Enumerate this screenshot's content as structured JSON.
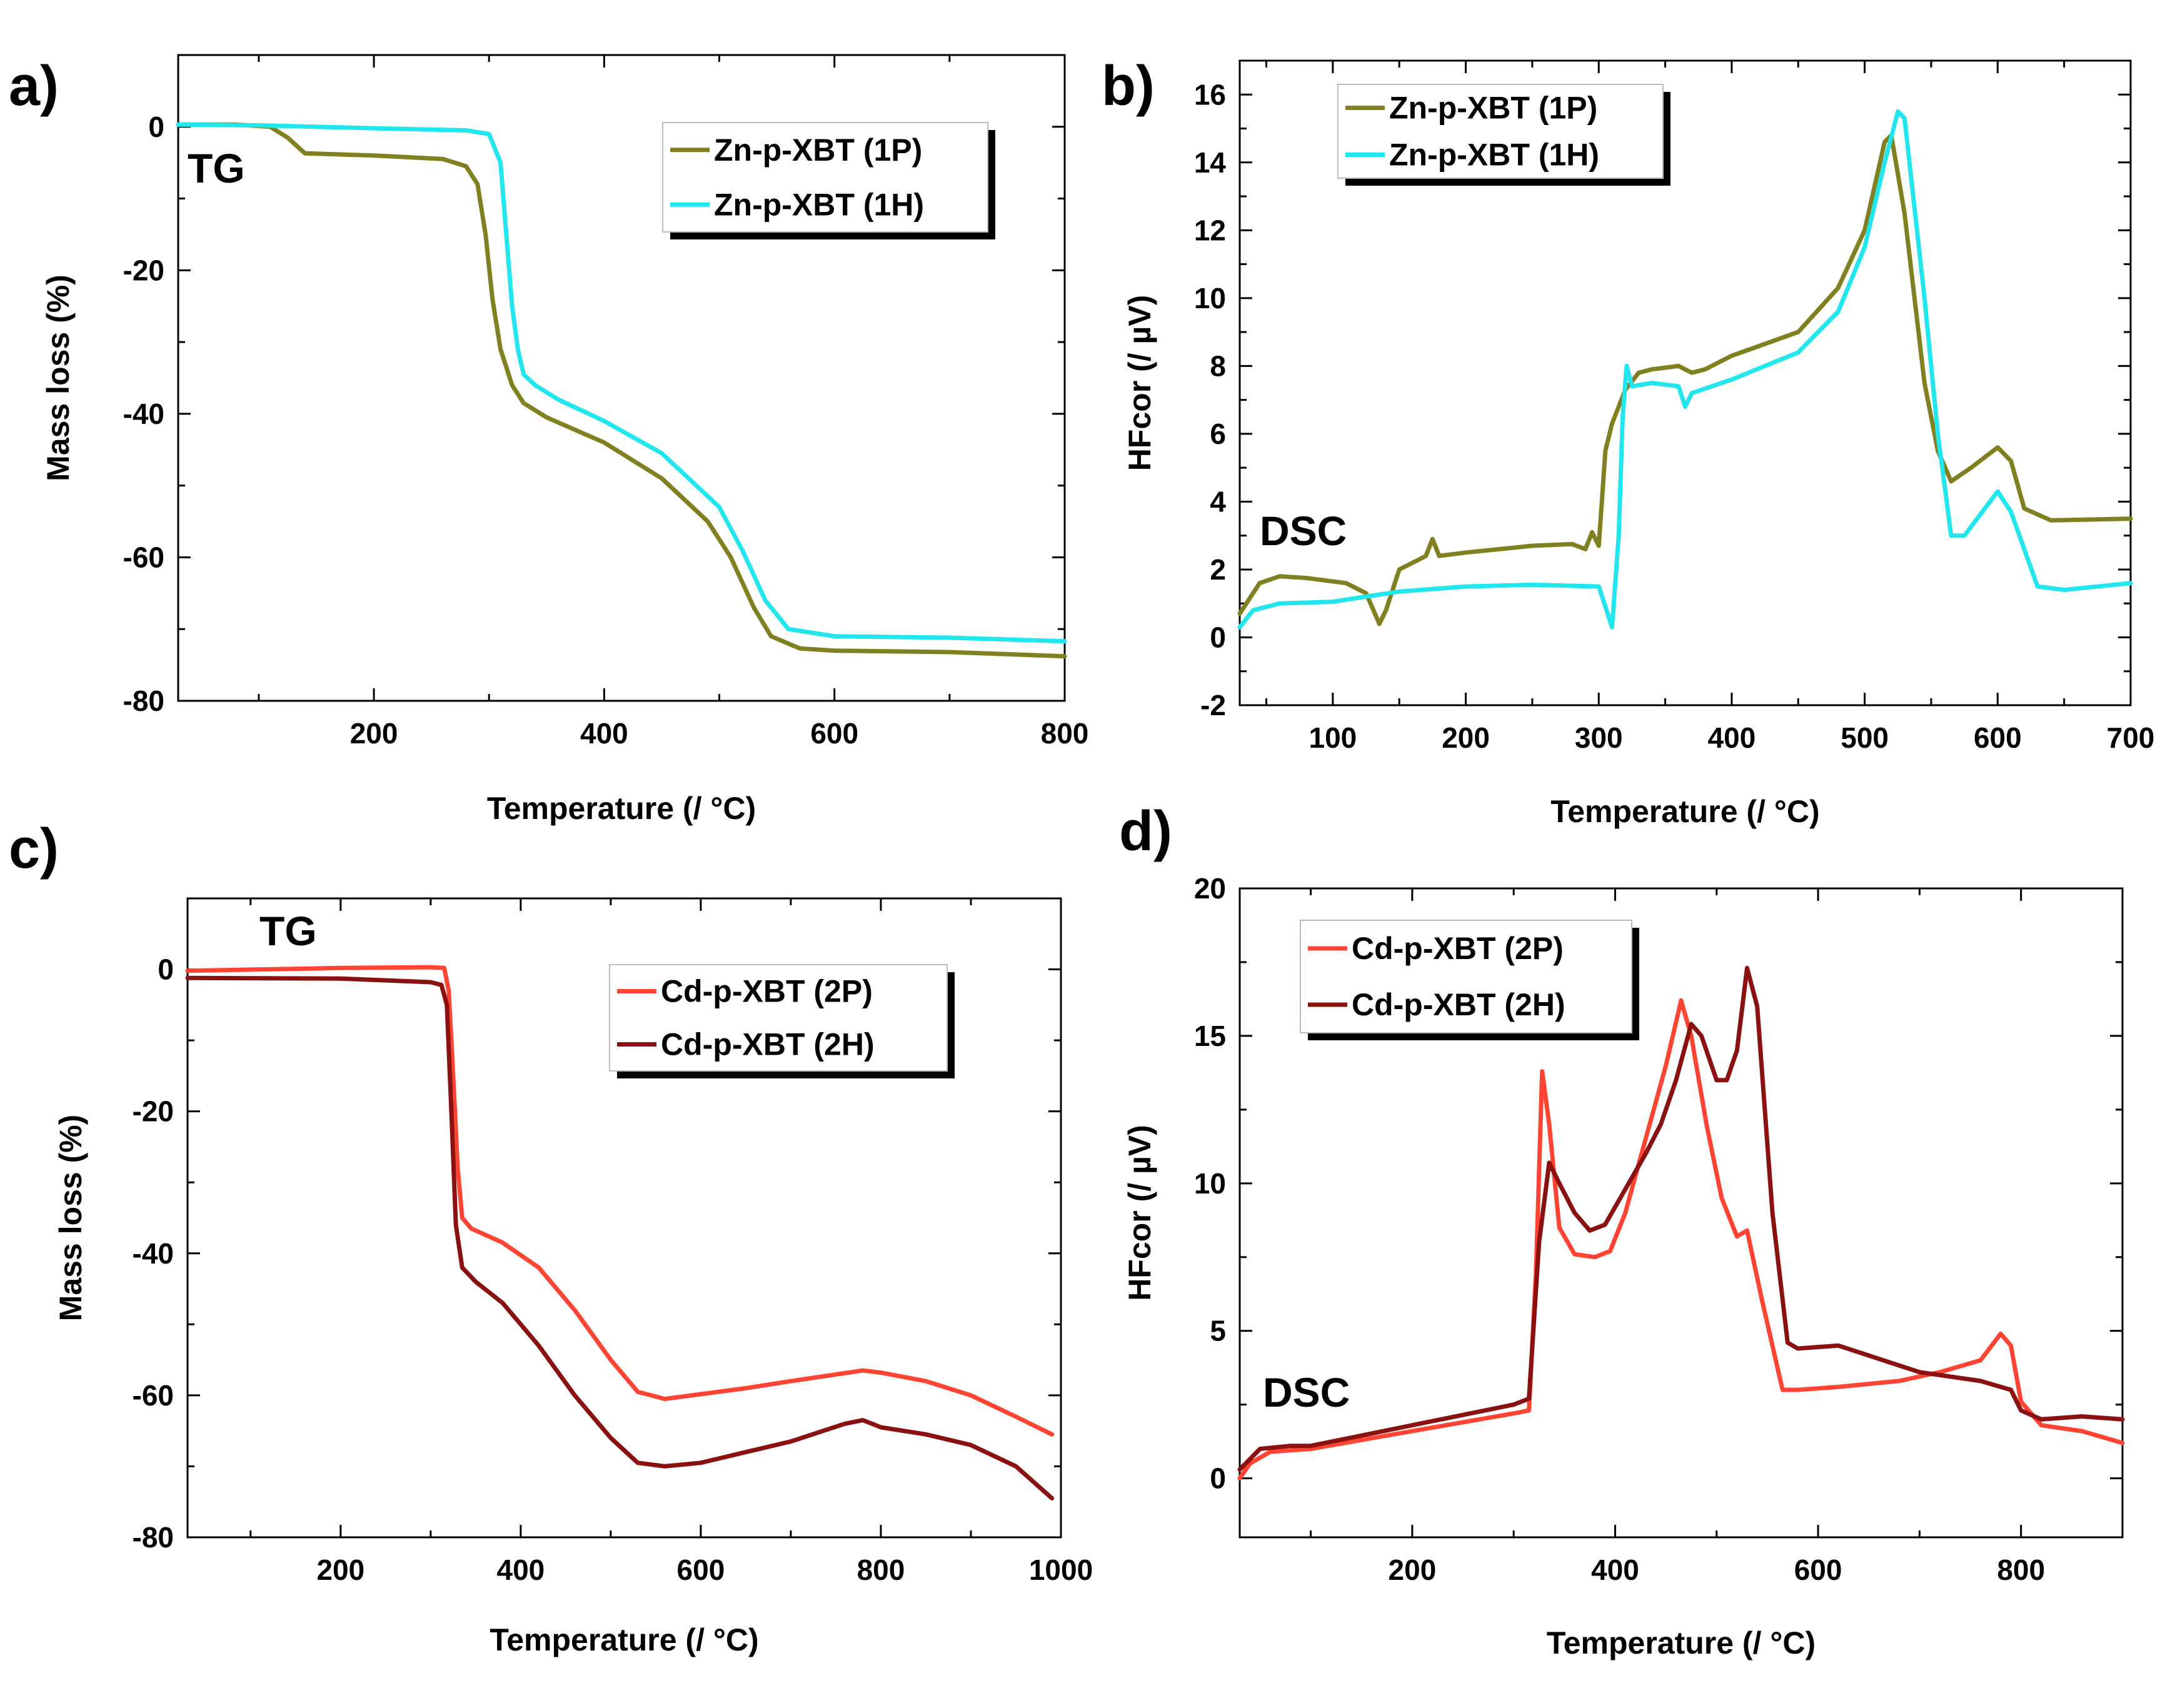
{
  "chart_data": [
    {
      "panel": "a)",
      "type": "line",
      "annotation": "TG",
      "xlabel": "Temperature (/ °C)",
      "ylabel": "Mass loss (%)",
      "xlim": [
        30,
        800
      ],
      "ylim": [
        -80,
        10
      ],
      "xticks": [
        200,
        400,
        600,
        800
      ],
      "yticks": [
        0,
        -20,
        -40,
        -60,
        -80
      ],
      "legend_position": "top-right",
      "series": [
        {
          "name": "Zn-p-XBT (1P)",
          "color": "#808020",
          "points": [
            [
              30,
              0.3
            ],
            [
              80,
              0.3
            ],
            [
              110,
              0
            ],
            [
              125,
              -1.5
            ],
            [
              140,
              -3.7
            ],
            [
              200,
              -4
            ],
            [
              260,
              -4.5
            ],
            [
              280,
              -5.5
            ],
            [
              290,
              -8
            ],
            [
              297,
              -15
            ],
            [
              303,
              -24
            ],
            [
              310,
              -31
            ],
            [
              320,
              -36
            ],
            [
              330,
              -38.5
            ],
            [
              350,
              -40.5
            ],
            [
              400,
              -44
            ],
            [
              450,
              -49
            ],
            [
              490,
              -55
            ],
            [
              510,
              -60
            ],
            [
              530,
              -67
            ],
            [
              545,
              -71
            ],
            [
              570,
              -72.7
            ],
            [
              600,
              -73
            ],
            [
              700,
              -73.2
            ],
            [
              800,
              -73.8
            ]
          ]
        },
        {
          "name": "Zn-p-XBT (1H)",
          "color": "#22e6ee",
          "points": [
            [
              30,
              0.3
            ],
            [
              100,
              0.2
            ],
            [
              200,
              -0.2
            ],
            [
              280,
              -0.5
            ],
            [
              300,
              -1
            ],
            [
              310,
              -5
            ],
            [
              315,
              -15
            ],
            [
              320,
              -25
            ],
            [
              325,
              -31
            ],
            [
              330,
              -34.5
            ],
            [
              340,
              -36
            ],
            [
              360,
              -38
            ],
            [
              400,
              -41
            ],
            [
              450,
              -45.5
            ],
            [
              500,
              -53
            ],
            [
              520,
              -59
            ],
            [
              540,
              -66
            ],
            [
              560,
              -70
            ],
            [
              600,
              -71
            ],
            [
              700,
              -71.2
            ],
            [
              800,
              -71.7
            ]
          ]
        }
      ]
    },
    {
      "panel": "b)",
      "type": "line",
      "annotation": "DSC",
      "xlabel": "Temperature (/ °C)",
      "ylabel": "HFcor (/ µV)",
      "xlim": [
        30,
        700
      ],
      "ylim": [
        -2,
        17
      ],
      "xticks": [
        100,
        200,
        300,
        400,
        500,
        600,
        700
      ],
      "yticks": [
        -2,
        0,
        2,
        4,
        6,
        8,
        10,
        12,
        14,
        16
      ],
      "legend_position": "top-left",
      "series": [
        {
          "name": "Zn-p-XBT (1P)",
          "color": "#808020",
          "points": [
            [
              30,
              0.7
            ],
            [
              45,
              1.6
            ],
            [
              60,
              1.8
            ],
            [
              80,
              1.75
            ],
            [
              110,
              1.6
            ],
            [
              125,
              1.3
            ],
            [
              135,
              0.4
            ],
            [
              140,
              0.8
            ],
            [
              150,
              2
            ],
            [
              165,
              2.3
            ],
            [
              170,
              2.4
            ],
            [
              175,
              2.9
            ],
            [
              180,
              2.4
            ],
            [
              200,
              2.5
            ],
            [
              250,
              2.7
            ],
            [
              280,
              2.75
            ],
            [
              290,
              2.6
            ],
            [
              295,
              3.1
            ],
            [
              300,
              2.7
            ],
            [
              305,
              5.5
            ],
            [
              310,
              6.3
            ],
            [
              320,
              7.3
            ],
            [
              330,
              7.8
            ],
            [
              340,
              7.9
            ],
            [
              360,
              8
            ],
            [
              370,
              7.8
            ],
            [
              380,
              7.9
            ],
            [
              400,
              8.3
            ],
            [
              450,
              9
            ],
            [
              480,
              10.3
            ],
            [
              500,
              12
            ],
            [
              515,
              14.6
            ],
            [
              520,
              14.8
            ],
            [
              530,
              12.5
            ],
            [
              545,
              7.5
            ],
            [
              555,
              5.5
            ],
            [
              565,
              4.6
            ],
            [
              580,
              5
            ],
            [
              600,
              5.6
            ],
            [
              610,
              5.2
            ],
            [
              620,
              3.8
            ],
            [
              640,
              3.45
            ],
            [
              700,
              3.5
            ]
          ]
        },
        {
          "name": "Zn-p-XBT (1H)",
          "color": "#22e6ee",
          "points": [
            [
              30,
              0.3
            ],
            [
              40,
              0.8
            ],
            [
              60,
              1
            ],
            [
              100,
              1.05
            ],
            [
              150,
              1.35
            ],
            [
              200,
              1.5
            ],
            [
              250,
              1.55
            ],
            [
              300,
              1.5
            ],
            [
              305,
              0.9
            ],
            [
              310,
              0.3
            ],
            [
              315,
              3
            ],
            [
              318,
              6.5
            ],
            [
              321,
              8
            ],
            [
              325,
              7.4
            ],
            [
              340,
              7.5
            ],
            [
              360,
              7.4
            ],
            [
              365,
              6.8
            ],
            [
              370,
              7.2
            ],
            [
              400,
              7.6
            ],
            [
              450,
              8.4
            ],
            [
              480,
              9.6
            ],
            [
              500,
              11.5
            ],
            [
              515,
              14
            ],
            [
              525,
              15.5
            ],
            [
              530,
              15.3
            ],
            [
              545,
              10
            ],
            [
              555,
              6
            ],
            [
              565,
              3
            ],
            [
              575,
              3
            ],
            [
              600,
              4.3
            ],
            [
              610,
              3.7
            ],
            [
              630,
              1.5
            ],
            [
              650,
              1.4
            ],
            [
              700,
              1.6
            ]
          ]
        }
      ]
    },
    {
      "panel": "c)",
      "type": "line",
      "annotation": "TG",
      "xlabel": "Temperature (/ °C)",
      "ylabel": "Mass loss (%)",
      "xlim": [
        30,
        1000
      ],
      "ylim": [
        -80,
        10
      ],
      "xticks": [
        200,
        400,
        600,
        800,
        1000
      ],
      "yticks": [
        0,
        -20,
        -40,
        -60,
        -80
      ],
      "legend_position": "top-right",
      "series": [
        {
          "name": "Cd-p-XBT (2P)",
          "color": "#ff4433",
          "points": [
            [
              30,
              -0.2
            ],
            [
              200,
              0.2
            ],
            [
              300,
              0.3
            ],
            [
              315,
              0.2
            ],
            [
              320,
              -3
            ],
            [
              325,
              -15
            ],
            [
              330,
              -28
            ],
            [
              335,
              -35
            ],
            [
              345,
              -36.5
            ],
            [
              380,
              -38.5
            ],
            [
              420,
              -42
            ],
            [
              460,
              -48
            ],
            [
              500,
              -55
            ],
            [
              530,
              -59.5
            ],
            [
              560,
              -60.5
            ],
            [
              650,
              -59
            ],
            [
              700,
              -58
            ],
            [
              780,
              -56.5
            ],
            [
              800,
              -56.8
            ],
            [
              850,
              -58
            ],
            [
              900,
              -60
            ],
            [
              950,
              -63
            ],
            [
              990,
              -65.5
            ]
          ]
        },
        {
          "name": "Cd-p-XBT (2H)",
          "color": "#8b1010",
          "points": [
            [
              30,
              -1.2
            ],
            [
              200,
              -1.3
            ],
            [
              300,
              -1.8
            ],
            [
              312,
              -2.2
            ],
            [
              318,
              -5
            ],
            [
              323,
              -20
            ],
            [
              328,
              -36
            ],
            [
              335,
              -42
            ],
            [
              350,
              -44
            ],
            [
              380,
              -47
            ],
            [
              420,
              -53
            ],
            [
              460,
              -60
            ],
            [
              500,
              -66
            ],
            [
              530,
              -69.5
            ],
            [
              560,
              -70
            ],
            [
              600,
              -69.5
            ],
            [
              650,
              -68
            ],
            [
              700,
              -66.5
            ],
            [
              760,
              -64
            ],
            [
              780,
              -63.5
            ],
            [
              800,
              -64.5
            ],
            [
              850,
              -65.5
            ],
            [
              900,
              -67
            ],
            [
              950,
              -70
            ],
            [
              990,
              -74.5
            ]
          ]
        }
      ]
    },
    {
      "panel": "d)",
      "type": "line",
      "annotation": "DSC",
      "xlabel": "Temperature (/ °C)",
      "ylabel": "HFcor (/ µV)",
      "xlim": [
        30,
        900
      ],
      "ylim": [
        -2,
        20
      ],
      "xticks": [
        200,
        400,
        600,
        800
      ],
      "yticks": [
        0,
        5,
        10,
        15,
        20
      ],
      "legend_position": "top-left",
      "series": [
        {
          "name": "Cd-p-XBT (2P)",
          "color": "#ff4433",
          "points": [
            [
              30,
              0
            ],
            [
              40,
              0.5
            ],
            [
              60,
              0.9
            ],
            [
              100,
              1
            ],
            [
              200,
              1.6
            ],
            [
              300,
              2.2
            ],
            [
              315,
              2.3
            ],
            [
              322,
              7
            ],
            [
              328,
              13.8
            ],
            [
              335,
              12
            ],
            [
              345,
              8.5
            ],
            [
              360,
              7.6
            ],
            [
              380,
              7.5
            ],
            [
              395,
              7.7
            ],
            [
              410,
              9
            ],
            [
              430,
              11.5
            ],
            [
              450,
              14
            ],
            [
              465,
              16.2
            ],
            [
              475,
              15
            ],
            [
              490,
              12
            ],
            [
              505,
              9.5
            ],
            [
              520,
              8.2
            ],
            [
              530,
              8.4
            ],
            [
              545,
              6
            ],
            [
              565,
              3
            ],
            [
              580,
              3
            ],
            [
              620,
              3.1
            ],
            [
              680,
              3.3
            ],
            [
              720,
              3.6
            ],
            [
              760,
              4
            ],
            [
              780,
              4.9
            ],
            [
              790,
              4.5
            ],
            [
              800,
              2.6
            ],
            [
              820,
              1.8
            ],
            [
              860,
              1.6
            ],
            [
              900,
              1.2
            ]
          ]
        },
        {
          "name": "Cd-p-XBT (2H)",
          "color": "#8b1010",
          "points": [
            [
              30,
              0.3
            ],
            [
              50,
              1
            ],
            [
              80,
              1.1
            ],
            [
              100,
              1.1
            ],
            [
              200,
              1.8
            ],
            [
              300,
              2.5
            ],
            [
              315,
              2.7
            ],
            [
              325,
              8
            ],
            [
              335,
              10.7
            ],
            [
              345,
              10
            ],
            [
              360,
              9
            ],
            [
              375,
              8.4
            ],
            [
              390,
              8.6
            ],
            [
              410,
              9.8
            ],
            [
              430,
              11
            ],
            [
              445,
              12
            ],
            [
              460,
              13.5
            ],
            [
              475,
              15.4
            ],
            [
              485,
              15
            ],
            [
              500,
              13.5
            ],
            [
              510,
              13.5
            ],
            [
              520,
              14.5
            ],
            [
              530,
              17.3
            ],
            [
              540,
              16
            ],
            [
              555,
              9
            ],
            [
              570,
              4.6
            ],
            [
              580,
              4.4
            ],
            [
              620,
              4.5
            ],
            [
              700,
              3.6
            ],
            [
              760,
              3.3
            ],
            [
              790,
              3
            ],
            [
              800,
              2.3
            ],
            [
              820,
              2
            ],
            [
              860,
              2.1
            ],
            [
              900,
              2
            ]
          ]
        }
      ]
    }
  ]
}
